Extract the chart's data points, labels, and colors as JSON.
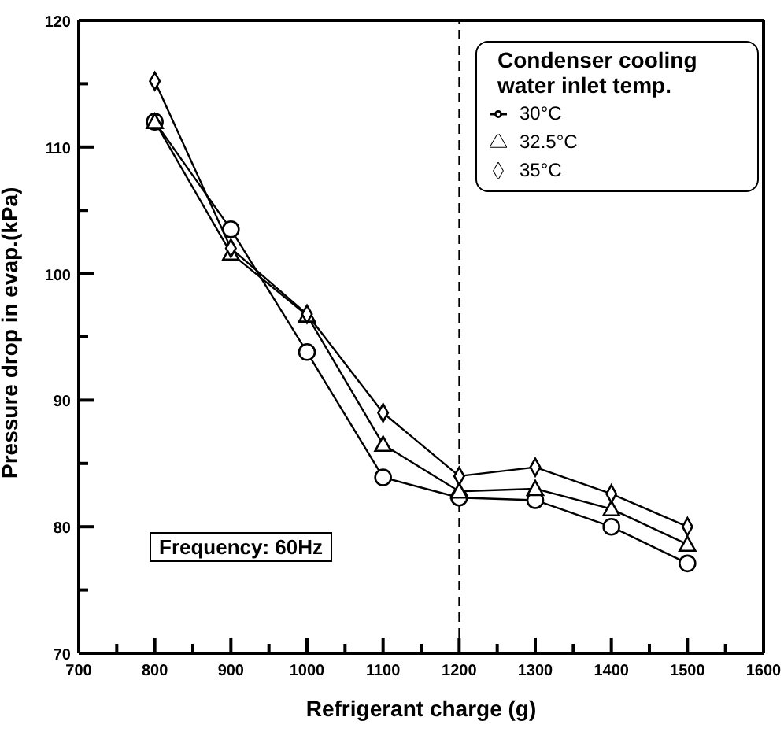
{
  "chart_data": {
    "type": "line",
    "xlabel": "Refrigerant charge (g)",
    "ylabel": "Pressure drop in evap.(kPa)",
    "legend_title": "Condenser cooling water inlet temp.",
    "annotations": [
      "Frequency: 60Hz"
    ],
    "x": [
      800,
      900,
      1000,
      1100,
      1200,
      1300,
      1400,
      1500
    ],
    "series": [
      {
        "name": "30°C",
        "color": "#000000",
        "marker": "circle",
        "values": [
          112,
          103.5,
          93.8,
          83.9,
          82.3,
          82.1,
          80,
          77.1
        ]
      },
      {
        "name": "32.5°C",
        "color": "#000000",
        "marker": "triangle",
        "values": [
          112,
          101.6,
          96.7,
          86.5,
          82.8,
          83,
          81.4,
          78.6
        ]
      },
      {
        "name": "35°C",
        "color": "#000000",
        "marker": "diamond",
        "values": [
          115.2,
          102,
          96.8,
          89,
          84,
          84.7,
          82.6,
          80
        ]
      }
    ],
    "xlim": [
      700,
      1600
    ],
    "xticks": [
      700,
      {
        "value": 750,
        "label": null
      },
      800,
      {
        "value": 850,
        "label": null
      },
      900,
      {
        "value": 950,
        "label": null
      },
      1000,
      {
        "value": 1050,
        "label": null
      },
      1100,
      {
        "value": 1150,
        "label": null
      },
      1200,
      {
        "value": 1250,
        "label": null
      },
      1300,
      {
        "value": 1350,
        "label": null
      },
      1400,
      {
        "value": 1450,
        "label": null
      },
      1500,
      {
        "value": 1550,
        "label": null
      },
      1600
    ],
    "ylim": [
      70,
      120
    ],
    "yticks": [
      70,
      {
        "value": 75,
        "label": null
      },
      80,
      {
        "value": 85,
        "label": null
      },
      90,
      {
        "value": 95,
        "label": null
      },
      100,
      {
        "value": 105,
        "label": null
      },
      110,
      {
        "value": 115,
        "label": null
      },
      120
    ],
    "ref_lines": [
      {
        "axis": "x",
        "value": 1200,
        "line_style": "dashed",
        "color": "#000000"
      }
    ],
    "grid": false,
    "legend": "top right",
    "line_style": "solid"
  }
}
